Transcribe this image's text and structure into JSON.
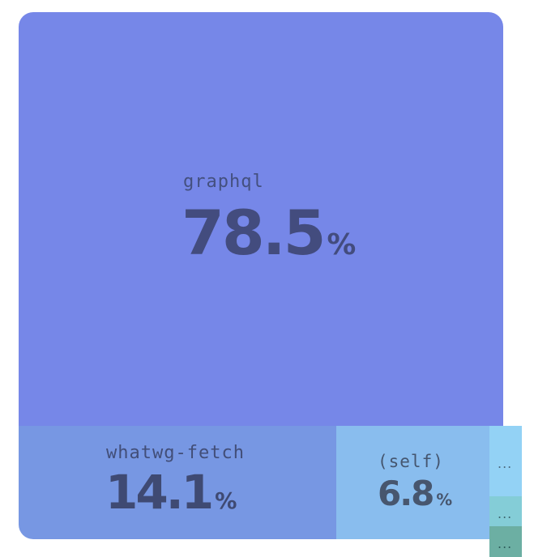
{
  "chart_data": {
    "type": "treemap",
    "nodes": [
      {
        "name": "graphql",
        "value": 78.5,
        "unit": "%",
        "color": "#7687e8"
      },
      {
        "name": "whatwg-fetch",
        "value": 14.1,
        "unit": "%",
        "color": "#7797e3"
      },
      {
        "name": "(self)",
        "value": 6.8,
        "unit": "%",
        "color": "#89bdee"
      }
    ],
    "collapsed_nodes": [
      {
        "label": "...",
        "color": "#93d2f5"
      },
      {
        "label": "...",
        "color": "#84cdd7"
      },
      {
        "label": "...",
        "color": "#6cafa3"
      }
    ]
  }
}
